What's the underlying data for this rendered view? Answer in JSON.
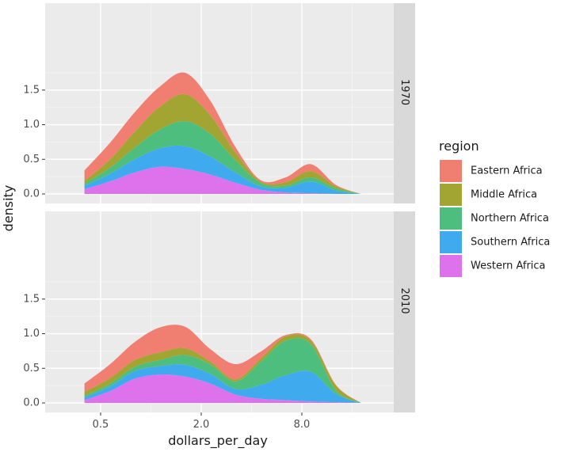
{
  "chart_data": {
    "type": "area",
    "subtype": "stacked density, faceted",
    "xlabel": "dollars_per_day",
    "ylabel": "density",
    "x_scale": "log2",
    "x_ticks": [
      0.5,
      2.0,
      8.0
    ],
    "x_tick_labels": [
      "0.5",
      "2.0",
      "8.0"
    ],
    "xlim": [
      0.35,
      24
    ],
    "y_ticks": [
      0.0,
      0.5,
      1.0,
      1.5
    ],
    "y_tick_labels": [
      "0.0",
      "0.5",
      "1.0",
      "1.5"
    ],
    "ylim": [
      -0.05,
      1.8
    ],
    "grid": true,
    "legend": {
      "title": "region",
      "position": "right"
    },
    "colors": {
      "Eastern Africa": "#F07F72",
      "Middle Africa": "#A3A533",
      "Northern Africa": "#4DBE7E",
      "Southern Africa": "#3FABEE",
      "Western Africa": "#DD72EC"
    },
    "x": [
      0.4,
      0.57,
      0.8,
      1.13,
      1.6,
      2.26,
      3.2,
      4.53,
      6.4,
      9.05,
      12.8,
      18.1
    ],
    "panels": [
      {
        "facet": "1970",
        "series": [
          {
            "name": "Western Africa",
            "values": [
              0.07,
              0.18,
              0.31,
              0.39,
              0.36,
              0.28,
              0.16,
              0.06,
              0.02,
              0.01,
              0.0,
              0.0
            ]
          },
          {
            "name": "Southern Africa",
            "values": [
              0.05,
              0.11,
              0.19,
              0.27,
              0.33,
              0.26,
              0.15,
              0.05,
              0.07,
              0.17,
              0.05,
              0.0
            ]
          },
          {
            "name": "Northern Africa",
            "values": [
              0.03,
              0.09,
              0.17,
              0.27,
              0.36,
              0.33,
              0.18,
              0.05,
              0.03,
              0.06,
              0.03,
              0.0
            ]
          },
          {
            "name": "Middle Africa",
            "values": [
              0.04,
              0.12,
              0.23,
              0.33,
              0.39,
              0.27,
              0.11,
              0.02,
              0.05,
              0.09,
              0.03,
              0.0
            ]
          },
          {
            "name": "Eastern Africa",
            "values": [
              0.15,
              0.24,
              0.28,
              0.29,
              0.31,
              0.21,
              0.08,
              0.02,
              0.07,
              0.1,
              0.02,
              0.0
            ]
          }
        ]
      },
      {
        "facet": "2010",
        "series": [
          {
            "name": "Western Africa",
            "values": [
              0.04,
              0.17,
              0.35,
              0.41,
              0.38,
              0.28,
              0.12,
              0.06,
              0.04,
              0.02,
              0.01,
              0.0
            ]
          },
          {
            "name": "Southern Africa",
            "values": [
              0.04,
              0.07,
              0.11,
              0.12,
              0.17,
              0.14,
              0.08,
              0.2,
              0.36,
              0.43,
              0.12,
              0.0
            ]
          },
          {
            "name": "Northern Africa",
            "values": [
              0.02,
              0.04,
              0.06,
              0.09,
              0.14,
              0.14,
              0.11,
              0.33,
              0.5,
              0.4,
              0.05,
              0.0
            ]
          },
          {
            "name": "Middle Africa",
            "values": [
              0.06,
              0.08,
              0.1,
              0.11,
              0.1,
              0.04,
              0.03,
              0.05,
              0.06,
              0.05,
              0.07,
              0.0
            ]
          },
          {
            "name": "Eastern Africa",
            "values": [
              0.12,
              0.2,
              0.26,
              0.36,
              0.31,
              0.18,
              0.22,
              0.1,
              0.02,
              0.02,
              0.01,
              0.0
            ]
          }
        ]
      }
    ],
    "legend_order": [
      "Eastern Africa",
      "Middle Africa",
      "Northern Africa",
      "Southern Africa",
      "Western Africa"
    ]
  }
}
